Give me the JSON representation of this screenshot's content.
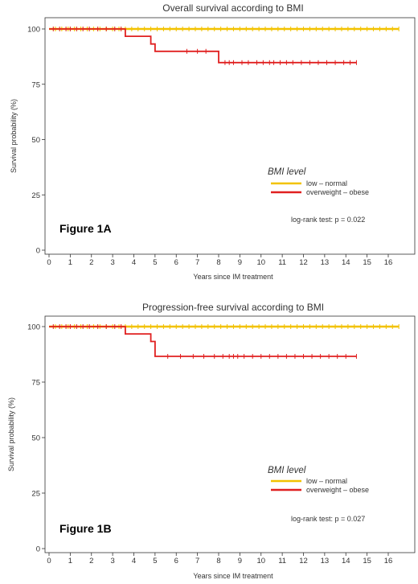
{
  "chart_data": [
    {
      "type": "line",
      "title": "Overall survival according to BMI",
      "xlabel": "Years since IM treatment",
      "ylabel": "Survival probability (%)",
      "xlim": [
        0,
        16.5
      ],
      "ylim": [
        0,
        100
      ],
      "x_ticks": [
        0,
        1,
        2,
        3,
        4,
        5,
        6,
        7,
        8,
        9,
        10,
        11,
        12,
        13,
        14,
        15,
        16
      ],
      "y_ticks": [
        0,
        25,
        50,
        75,
        100
      ],
      "grid": false,
      "legend_title": "BMI level",
      "legend_position": "bottom-right",
      "annotation": "log-rank test: p = 0.022",
      "figure_label": "Figure 1A",
      "series": [
        {
          "name": "low – normal",
          "color": "#f2c200",
          "steps": [
            [
              0,
              100
            ],
            [
              16.5,
              100
            ]
          ],
          "censor": [
            0.3,
            0.6,
            0.9,
            1.2,
            1.5,
            1.8,
            2.1,
            2.4,
            2.7,
            3.0,
            3.3,
            3.6,
            3.9,
            4.2,
            4.5,
            4.8,
            5.1,
            5.4,
            5.7,
            6.0,
            6.3,
            6.6,
            6.9,
            7.2,
            7.5,
            7.8,
            8.1,
            8.4,
            8.7,
            9.0,
            9.3,
            9.6,
            9.9,
            10.2,
            10.5,
            10.8,
            11.1,
            11.4,
            11.7,
            12.0,
            12.3,
            12.6,
            12.9,
            13.2,
            13.5,
            13.8,
            14.1,
            14.4,
            14.7,
            15.0,
            15.3,
            15.6,
            15.9,
            16.2,
            16.5
          ]
        },
        {
          "name": "overweight – obese",
          "color": "#e02020",
          "steps": [
            [
              0,
              100
            ],
            [
              3.6,
              100
            ],
            [
              3.6,
              96.7
            ],
            [
              4.8,
              96.7
            ],
            [
              4.8,
              93.2
            ],
            [
              5.0,
              93.2
            ],
            [
              5.0,
              89.9
            ],
            [
              8.0,
              89.9
            ],
            [
              8.0,
              84.8
            ],
            [
              14.5,
              84.8
            ]
          ],
          "censor": [
            0.2,
            0.5,
            0.8,
            1.0,
            1.3,
            1.6,
            1.9,
            2.3,
            2.7,
            3.1,
            3.4,
            6.5,
            7.0,
            7.4,
            8.3,
            8.5,
            8.7,
            9.1,
            9.4,
            9.8,
            10.1,
            10.4,
            10.6,
            10.9,
            11.2,
            11.5,
            11.9,
            12.3,
            12.7,
            13.1,
            13.5,
            13.9,
            14.2,
            14.5
          ]
        }
      ]
    },
    {
      "type": "line",
      "title": "Progression-free survival according to BMI",
      "xlabel": "Years since IM treatment",
      "ylabel": "Survival probability (%)",
      "xlim": [
        0,
        16.5
      ],
      "ylim": [
        0,
        100
      ],
      "x_ticks": [
        0,
        1,
        2,
        3,
        4,
        5,
        6,
        7,
        8,
        9,
        10,
        11,
        12,
        13,
        14,
        15,
        16
      ],
      "y_ticks": [
        0,
        25,
        50,
        75,
        100
      ],
      "grid": false,
      "legend_title": "BMI level",
      "legend_position": "bottom-right",
      "annotation": "log-rank test: p = 0.027",
      "figure_label": "Figure 1B",
      "series": [
        {
          "name": "low – normal",
          "color": "#f2c200",
          "steps": [
            [
              0,
              100
            ],
            [
              16.5,
              100
            ]
          ],
          "censor": [
            0.3,
            0.6,
            0.9,
            1.2,
            1.5,
            1.8,
            2.1,
            2.4,
            2.7,
            3.0,
            3.3,
            3.6,
            3.9,
            4.2,
            4.5,
            4.8,
            5.1,
            5.4,
            5.7,
            6.0,
            6.3,
            6.6,
            6.9,
            7.2,
            7.5,
            7.8,
            8.1,
            8.4,
            8.7,
            9.0,
            9.3,
            9.6,
            9.9,
            10.2,
            10.5,
            10.8,
            11.1,
            11.4,
            11.7,
            12.0,
            12.3,
            12.6,
            12.9,
            13.2,
            13.5,
            13.8,
            14.1,
            14.4,
            14.7,
            15.0,
            15.3,
            15.6,
            15.9,
            16.2,
            16.5
          ]
        },
        {
          "name": "overweight – obese",
          "color": "#e02020",
          "steps": [
            [
              0,
              100
            ],
            [
              3.6,
              100
            ],
            [
              3.6,
              96.7
            ],
            [
              4.8,
              96.7
            ],
            [
              4.8,
              93.3
            ],
            [
              5.0,
              93.3
            ],
            [
              5.0,
              86.6
            ],
            [
              14.5,
              86.6
            ]
          ],
          "censor": [
            0.2,
            0.5,
            0.8,
            1.0,
            1.3,
            1.6,
            1.9,
            2.3,
            2.7,
            3.1,
            3.4,
            5.6,
            6.2,
            6.8,
            7.3,
            7.8,
            8.2,
            8.5,
            8.7,
            8.9,
            9.2,
            9.6,
            10.0,
            10.4,
            10.8,
            11.2,
            11.6,
            12.0,
            12.4,
            12.8,
            13.2,
            13.6,
            14.0,
            14.5
          ]
        }
      ]
    }
  ]
}
